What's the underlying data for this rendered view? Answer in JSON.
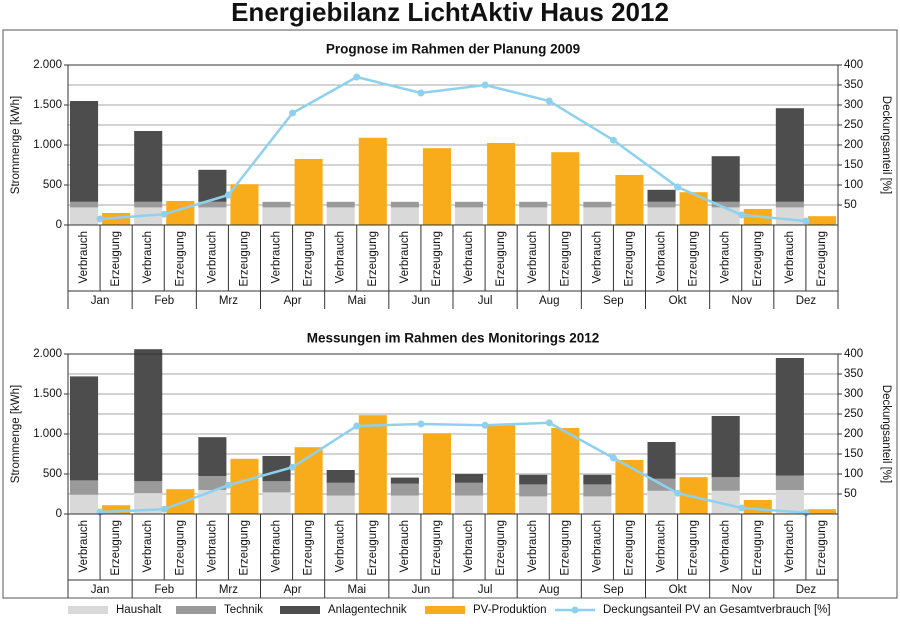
{
  "title": "Energiebilanz LichtAktiv Haus 2012",
  "chart_data": [
    {
      "type": "bar",
      "title": "Prognose im Rahmen der Planung 2009",
      "categories": [
        "Jan",
        "Feb",
        "Mrz",
        "Apr",
        "Mai",
        "Jun",
        "Jul",
        "Aug",
        "Sep",
        "Okt",
        "Nov",
        "Dez"
      ],
      "subcategories": [
        "Verbrauch",
        "Erzeugung"
      ],
      "y_label": "Strommenge [kWh]",
      "y2_label": "Deckungsanteil [%]",
      "ylim": [
        0,
        2000
      ],
      "yticks": [
        0,
        500,
        {
          "value": 1000,
          "label": "1.000"
        },
        {
          "value": 1500,
          "label": "1.500"
        },
        {
          "value": 2000,
          "label": "2.000"
        }
      ],
      "y2lim": [
        0,
        400
      ],
      "y2ticks": [
        50,
        100,
        150,
        200,
        250,
        300,
        350,
        400
      ],
      "grid": true,
      "series": [
        {
          "name": "Haushalt",
          "color": "#d9d9d9",
          "stack": "Verbrauch",
          "values": [
            220,
            220,
            220,
            220,
            220,
            220,
            220,
            220,
            220,
            220,
            220,
            220
          ]
        },
        {
          "name": "Technik",
          "color": "#9a9a9a",
          "stack": "Verbrauch",
          "values": [
            70,
            70,
            70,
            70,
            70,
            70,
            70,
            70,
            70,
            70,
            70,
            70
          ]
        },
        {
          "name": "Anlagentechnik",
          "color": "#4d4d4d",
          "stack": "Verbrauch",
          "values": [
            1260,
            885,
            400,
            0,
            0,
            0,
            0,
            0,
            0,
            150,
            570,
            1170
          ]
        },
        {
          "name": "PV-Produktion",
          "color": "#f9ac1b",
          "stack": "Erzeugung",
          "values": [
            150,
            300,
            510,
            825,
            1090,
            960,
            1025,
            910,
            625,
            410,
            200,
            110
          ]
        },
        {
          "name": "Deckungsanteil PV an Gesamtverbrauch [%]",
          "color": "#8ed1ef",
          "type": "line",
          "axis": "y2",
          "values": [
            15,
            27,
            75,
            280,
            370,
            330,
            350,
            310,
            212,
            95,
            25,
            10
          ]
        }
      ]
    },
    {
      "type": "bar",
      "title": "Messungen im Rahmen des Monitorings 2012",
      "categories": [
        "Jan",
        "Feb",
        "Mrz",
        "Apr",
        "Mai",
        "Jun",
        "Jul",
        "Aug",
        "Sep",
        "Okt",
        "Nov",
        "Dez"
      ],
      "subcategories": [
        "Verbrauch",
        "Erzeugung"
      ],
      "y_label": "Strommenge [kWh]",
      "y2_label": "Deckungsanteil [%]",
      "ylim": [
        0,
        2000
      ],
      "yticks": [
        0,
        500,
        {
          "value": 1000,
          "label": "1.000"
        },
        {
          "value": 1500,
          "label": "1.500"
        },
        {
          "value": 2000,
          "label": "2.000"
        }
      ],
      "y2lim": [
        0,
        400
      ],
      "y2ticks": [
        50,
        100,
        150,
        200,
        250,
        300,
        350,
        400
      ],
      "grid": true,
      "series": [
        {
          "name": "Haushalt",
          "color": "#d9d9d9",
          "stack": "Verbrauch",
          "values": [
            240,
            260,
            300,
            270,
            230,
            230,
            230,
            220,
            220,
            290,
            290,
            300
          ]
        },
        {
          "name": "Technik",
          "color": "#9a9a9a",
          "stack": "Verbrauch",
          "values": [
            180,
            150,
            175,
            140,
            160,
            150,
            160,
            150,
            150,
            150,
            170,
            180
          ]
        },
        {
          "name": "Anlagentechnik",
          "color": "#4d4d4d",
          "stack": "Verbrauch",
          "values": [
            1300,
            1650,
            485,
            315,
            160,
            75,
            110,
            120,
            120,
            460,
            765,
            1470
          ]
        },
        {
          "name": "PV-Produktion",
          "color": "#f9ac1b",
          "stack": "Erzeugung",
          "values": [
            110,
            310,
            690,
            835,
            1235,
            1010,
            1115,
            1075,
            675,
            460,
            175,
            60
          ]
        },
        {
          "name": "Deckungsanteil PV an Gesamtverbrauch [%]",
          "color": "#8ed1ef",
          "type": "line",
          "axis": "y2",
          "values": [
            5,
            12,
            72,
            117,
            220,
            225,
            222,
            228,
            140,
            52,
            15,
            3
          ]
        }
      ]
    }
  ]
}
